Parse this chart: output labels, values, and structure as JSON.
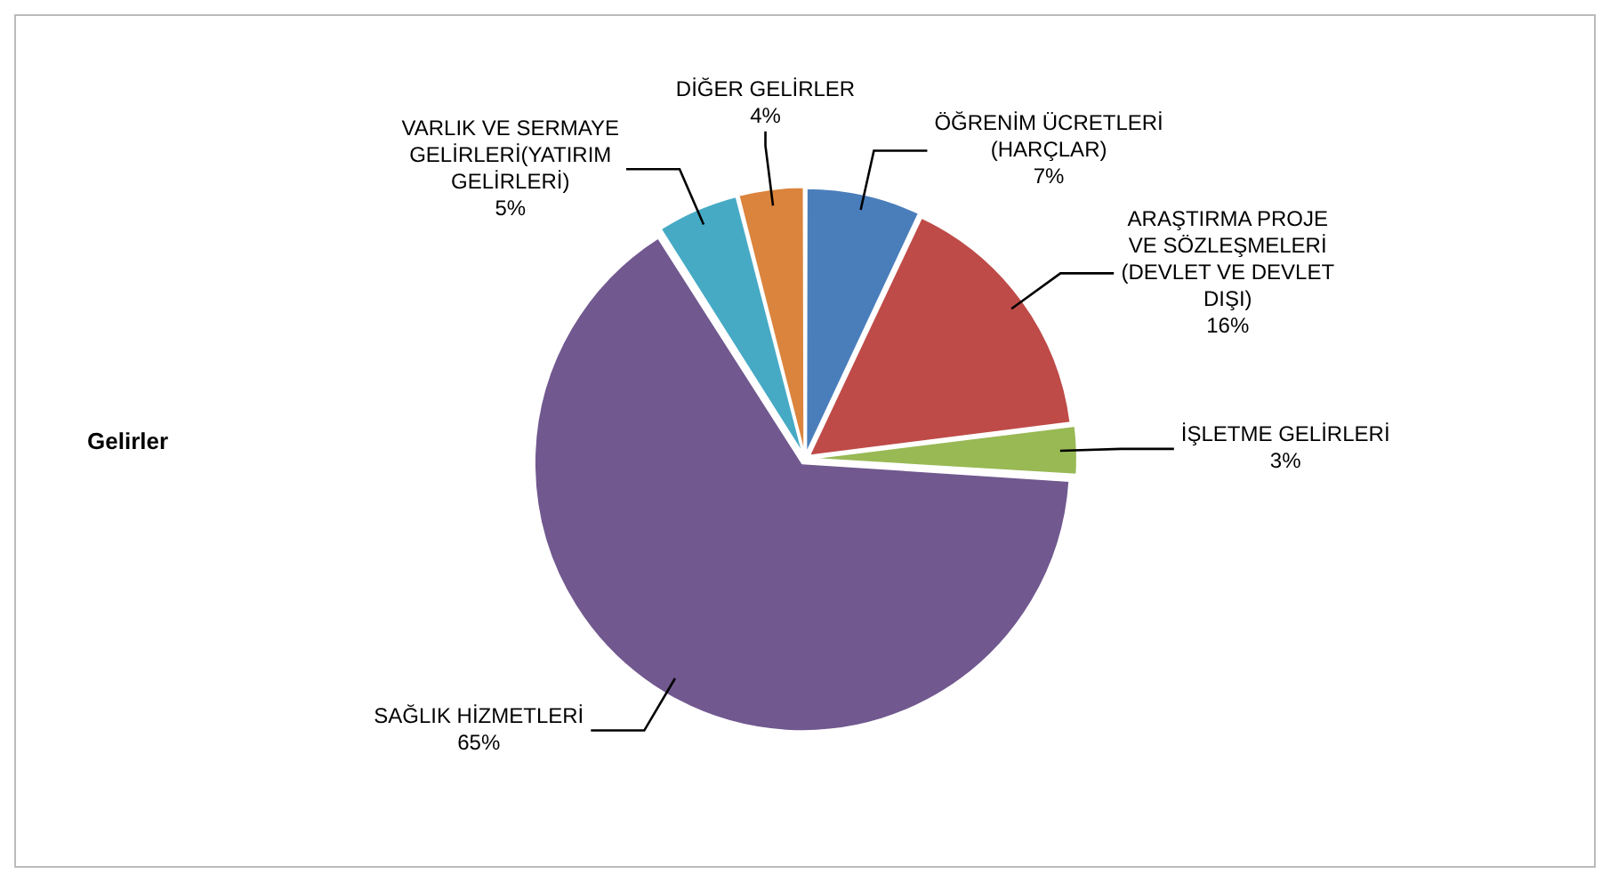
{
  "chart_data": {
    "type": "pie",
    "title": "Gelirler",
    "categories": [
      "ÖĞRENİM ÜCRETLERİ (HARÇLAR)",
      "ARAŞTIRMA PROJE VE SÖZLEŞMELERİ (DEVLET VE DEVLET DIŞI)",
      "İŞLETME GELİRLERİ",
      "SAĞLIK HİZMETLERİ",
      "VARLIK VE SERMAYE GELİRLERİ(YATIRIM GELİRLERİ)",
      "DİĞER GELİRLER"
    ],
    "values": [
      7,
      16,
      3,
      65,
      5,
      4
    ],
    "colors": [
      "#4a7ebb",
      "#be4b48",
      "#98b954",
      "#71588f",
      "#46aac5",
      "#db843d"
    ],
    "value_labels": [
      "7%",
      "16%",
      "3%",
      "65%",
      "5%",
      "4%"
    ],
    "legend": false
  }
}
